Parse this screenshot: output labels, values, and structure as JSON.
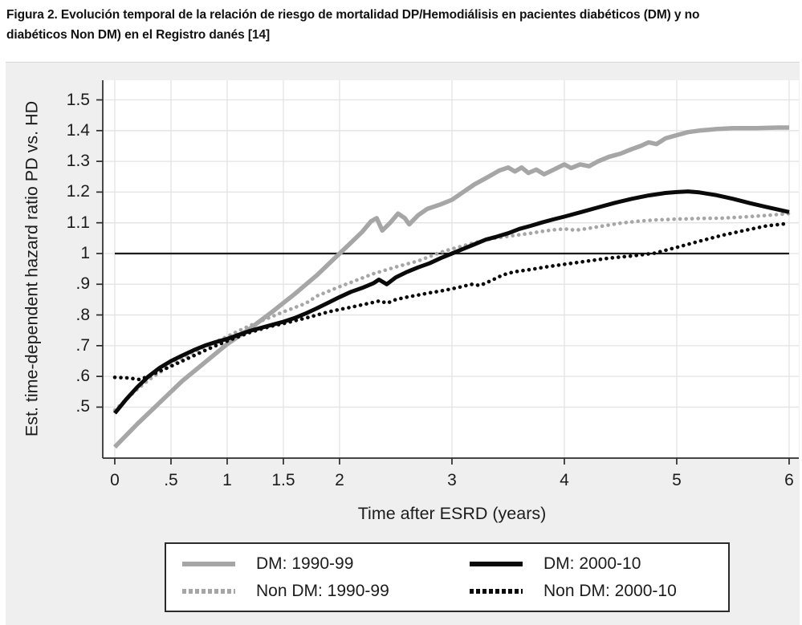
{
  "caption": {
    "line1": "Figura 2. Evolución temporal de la relación de riesgo de mortalidad DP/Hemodiálisis en pacientes diabéticos (DM) y no",
    "line2": "diabéticos Non DM) en el Registro danés [14]"
  },
  "chart_data": {
    "type": "line",
    "title": "",
    "xlabel": "Time after ESRD (years)",
    "ylabel": "Est. time-dependent hazard ratio PD vs. HD",
    "xlim": [
      -0.107,
      6.086
    ],
    "ylim": [
      0.334,
      1.564
    ],
    "xticks": [
      0,
      0.5,
      1,
      1.5,
      2,
      3,
      4,
      5,
      6
    ],
    "xtick_labels": [
      "0",
      ".5",
      "1",
      "1.5",
      "2",
      "3",
      "4",
      "5",
      "6"
    ],
    "yticks": [
      0.5,
      0.6,
      0.7,
      0.8,
      0.9,
      1,
      1.1,
      1.2,
      1.3,
      1.4,
      1.5
    ],
    "ytick_labels": [
      ".5",
      ".6",
      ".7",
      ".8",
      ".9",
      "1",
      "1.1",
      "1.2",
      "1.3",
      "1.4",
      "1.5"
    ],
    "grid": true,
    "legend_position": "below-axis",
    "reference_line": {
      "y": 1,
      "x_start": 0,
      "x_end": 6
    },
    "colors": {
      "gray_series": "#a6a6a6",
      "black_series": "#0a0a0a",
      "grid": "#e3e3e3",
      "axis": "#2b2b2b",
      "tick_text": "#1c1c1c",
      "plot_bg": "#ffffff",
      "figure_bg": "#efefef",
      "reference_line": "#1a1a1a",
      "legend_border": "#2b2b2b"
    },
    "series": [
      {
        "name": "DM: 1990-99",
        "style": "solid",
        "color": "#a6a6a6",
        "width": 5.5,
        "points": [
          [
            0,
            0.37
          ],
          [
            0.2,
            0.445
          ],
          [
            0.4,
            0.515
          ],
          [
            0.6,
            0.585
          ],
          [
            0.8,
            0.645
          ],
          [
            1,
            0.705
          ],
          [
            1.2,
            0.755
          ],
          [
            1.4,
            0.81
          ],
          [
            1.6,
            0.868
          ],
          [
            1.8,
            0.93
          ],
          [
            1.9,
            0.965
          ],
          [
            2,
            1
          ],
          [
            2.1,
            1.035
          ],
          [
            2.2,
            1.07
          ],
          [
            2.28,
            1.105
          ],
          [
            2.33,
            1.115
          ],
          [
            2.38,
            1.075
          ],
          [
            2.45,
            1.1
          ],
          [
            2.52,
            1.13
          ],
          [
            2.58,
            1.115
          ],
          [
            2.62,
            1.095
          ],
          [
            2.7,
            1.125
          ],
          [
            2.78,
            1.145
          ],
          [
            2.9,
            1.16
          ],
          [
            3,
            1.175
          ],
          [
            3.1,
            1.2
          ],
          [
            3.2,
            1.225
          ],
          [
            3.3,
            1.245
          ],
          [
            3.42,
            1.27
          ],
          [
            3.5,
            1.28
          ],
          [
            3.56,
            1.267
          ],
          [
            3.62,
            1.28
          ],
          [
            3.68,
            1.262
          ],
          [
            3.75,
            1.273
          ],
          [
            3.82,
            1.258
          ],
          [
            3.9,
            1.272
          ],
          [
            4,
            1.29
          ],
          [
            4.06,
            1.278
          ],
          [
            4.14,
            1.29
          ],
          [
            4.22,
            1.284
          ],
          [
            4.3,
            1.3
          ],
          [
            4.4,
            1.315
          ],
          [
            4.5,
            1.325
          ],
          [
            4.6,
            1.34
          ],
          [
            4.68,
            1.35
          ],
          [
            4.75,
            1.362
          ],
          [
            4.82,
            1.356
          ],
          [
            4.9,
            1.375
          ],
          [
            5,
            1.385
          ],
          [
            5.1,
            1.395
          ],
          [
            5.2,
            1.4
          ],
          [
            5.35,
            1.405
          ],
          [
            5.5,
            1.408
          ],
          [
            5.7,
            1.408
          ],
          [
            5.9,
            1.41
          ],
          [
            6,
            1.41
          ]
        ]
      },
      {
        "name": "DM: 2000-10",
        "style": "solid",
        "color": "#0a0a0a",
        "width": 5,
        "points": [
          [
            0,
            0.48
          ],
          [
            0.1,
            0.525
          ],
          [
            0.2,
            0.565
          ],
          [
            0.3,
            0.6
          ],
          [
            0.4,
            0.628
          ],
          [
            0.5,
            0.65
          ],
          [
            0.6,
            0.668
          ],
          [
            0.7,
            0.685
          ],
          [
            0.8,
            0.7
          ],
          [
            0.9,
            0.712
          ],
          [
            1,
            0.722
          ],
          [
            1.1,
            0.735
          ],
          [
            1.2,
            0.748
          ],
          [
            1.3,
            0.758
          ],
          [
            1.4,
            0.768
          ],
          [
            1.5,
            0.778
          ],
          [
            1.6,
            0.79
          ],
          [
            1.7,
            0.805
          ],
          [
            1.8,
            0.822
          ],
          [
            1.9,
            0.84
          ],
          [
            2,
            0.858
          ],
          [
            2.1,
            0.875
          ],
          [
            2.2,
            0.888
          ],
          [
            2.3,
            0.903
          ],
          [
            2.35,
            0.915
          ],
          [
            2.42,
            0.9
          ],
          [
            2.5,
            0.922
          ],
          [
            2.6,
            0.94
          ],
          [
            2.7,
            0.955
          ],
          [
            2.8,
            0.968
          ],
          [
            2.9,
            0.985
          ],
          [
            3,
            1
          ],
          [
            3.1,
            1.015
          ],
          [
            3.2,
            1.03
          ],
          [
            3.3,
            1.045
          ],
          [
            3.4,
            1.055
          ],
          [
            3.5,
            1.066
          ],
          [
            3.6,
            1.08
          ],
          [
            3.7,
            1.09
          ],
          [
            3.8,
            1.101
          ],
          [
            3.9,
            1.111
          ],
          [
            4,
            1.12
          ],
          [
            4.15,
            1.135
          ],
          [
            4.3,
            1.15
          ],
          [
            4.45,
            1.165
          ],
          [
            4.6,
            1.178
          ],
          [
            4.75,
            1.189
          ],
          [
            4.9,
            1.197
          ],
          [
            5,
            1.2
          ],
          [
            5.1,
            1.202
          ],
          [
            5.2,
            1.199
          ],
          [
            5.35,
            1.19
          ],
          [
            5.5,
            1.178
          ],
          [
            5.65,
            1.164
          ],
          [
            5.8,
            1.151
          ],
          [
            5.9,
            1.143
          ],
          [
            6,
            1.135
          ]
        ]
      },
      {
        "name": "Non DM: 1990-99",
        "style": "dotted",
        "color": "#a6a6a6",
        "width": 4.6,
        "points": [
          [
            0,
            0.49
          ],
          [
            0.1,
            0.525
          ],
          [
            0.2,
            0.558
          ],
          [
            0.3,
            0.588
          ],
          [
            0.4,
            0.613
          ],
          [
            0.5,
            0.637
          ],
          [
            0.6,
            0.658
          ],
          [
            0.7,
            0.678
          ],
          [
            0.8,
            0.696
          ],
          [
            0.9,
            0.713
          ],
          [
            1,
            0.73
          ],
          [
            1.1,
            0.748
          ],
          [
            1.2,
            0.765
          ],
          [
            1.3,
            0.78
          ],
          [
            1.4,
            0.795
          ],
          [
            1.5,
            0.81
          ],
          [
            1.6,
            0.824
          ],
          [
            1.7,
            0.838
          ],
          [
            1.8,
            0.862
          ],
          [
            1.9,
            0.877
          ],
          [
            2,
            0.892
          ],
          [
            2.1,
            0.906
          ],
          [
            2.2,
            0.92
          ],
          [
            2.3,
            0.934
          ],
          [
            2.4,
            0.945
          ],
          [
            2.5,
            0.956
          ],
          [
            2.6,
            0.966
          ],
          [
            2.7,
            0.976
          ],
          [
            2.8,
            0.99
          ],
          [
            2.9,
            1.004
          ],
          [
            3,
            1.015
          ],
          [
            3.1,
            1.025
          ],
          [
            3.2,
            1.035
          ],
          [
            3.3,
            1.044
          ],
          [
            3.4,
            1.051
          ],
          [
            3.5,
            1.056
          ],
          [
            3.6,
            1.061
          ],
          [
            3.7,
            1.066
          ],
          [
            3.8,
            1.072
          ],
          [
            3.9,
            1.077
          ],
          [
            4,
            1.08
          ],
          [
            4.1,
            1.076
          ],
          [
            4.2,
            1.081
          ],
          [
            4.35,
            1.09
          ],
          [
            4.5,
            1.099
          ],
          [
            4.65,
            1.105
          ],
          [
            4.8,
            1.109
          ],
          [
            5,
            1.112
          ],
          [
            5.2,
            1.114
          ],
          [
            5.4,
            1.115
          ],
          [
            5.6,
            1.119
          ],
          [
            5.8,
            1.124
          ],
          [
            6,
            1.13
          ]
        ]
      },
      {
        "name": "Non DM: 2000-10",
        "style": "dotted",
        "color": "#0a0a0a",
        "width": 4.6,
        "points": [
          [
            0,
            0.597
          ],
          [
            0.12,
            0.595
          ],
          [
            0.22,
            0.59
          ],
          [
            0.32,
            0.603
          ],
          [
            0.4,
            0.617
          ],
          [
            0.5,
            0.633
          ],
          [
            0.6,
            0.65
          ],
          [
            0.7,
            0.667
          ],
          [
            0.8,
            0.684
          ],
          [
            0.9,
            0.7
          ],
          [
            1,
            0.715
          ],
          [
            1.1,
            0.729
          ],
          [
            1.2,
            0.743
          ],
          [
            1.3,
            0.754
          ],
          [
            1.4,
            0.764
          ],
          [
            1.5,
            0.772
          ],
          [
            1.6,
            0.781
          ],
          [
            1.7,
            0.79
          ],
          [
            1.8,
            0.8
          ],
          [
            1.9,
            0.81
          ],
          [
            2,
            0.818
          ],
          [
            2.1,
            0.825
          ],
          [
            2.2,
            0.833
          ],
          [
            2.3,
            0.841
          ],
          [
            2.36,
            0.846
          ],
          [
            2.42,
            0.838
          ],
          [
            2.5,
            0.85
          ],
          [
            2.6,
            0.858
          ],
          [
            2.7,
            0.865
          ],
          [
            2.8,
            0.872
          ],
          [
            2.9,
            0.878
          ],
          [
            3,
            0.885
          ],
          [
            3.1,
            0.893
          ],
          [
            3.17,
            0.9
          ],
          [
            3.25,
            0.896
          ],
          [
            3.35,
            0.912
          ],
          [
            3.45,
            0.93
          ],
          [
            3.55,
            0.94
          ],
          [
            3.7,
            0.948
          ],
          [
            3.85,
            0.957
          ],
          [
            4,
            0.965
          ],
          [
            4.2,
            0.975
          ],
          [
            4.4,
            0.985
          ],
          [
            4.6,
            0.992
          ],
          [
            4.8,
            1.001
          ],
          [
            5,
            1.02
          ],
          [
            5.2,
            1.04
          ],
          [
            5.4,
            1.059
          ],
          [
            5.6,
            1.075
          ],
          [
            5.8,
            1.09
          ],
          [
            6,
            1.098
          ]
        ]
      }
    ]
  }
}
